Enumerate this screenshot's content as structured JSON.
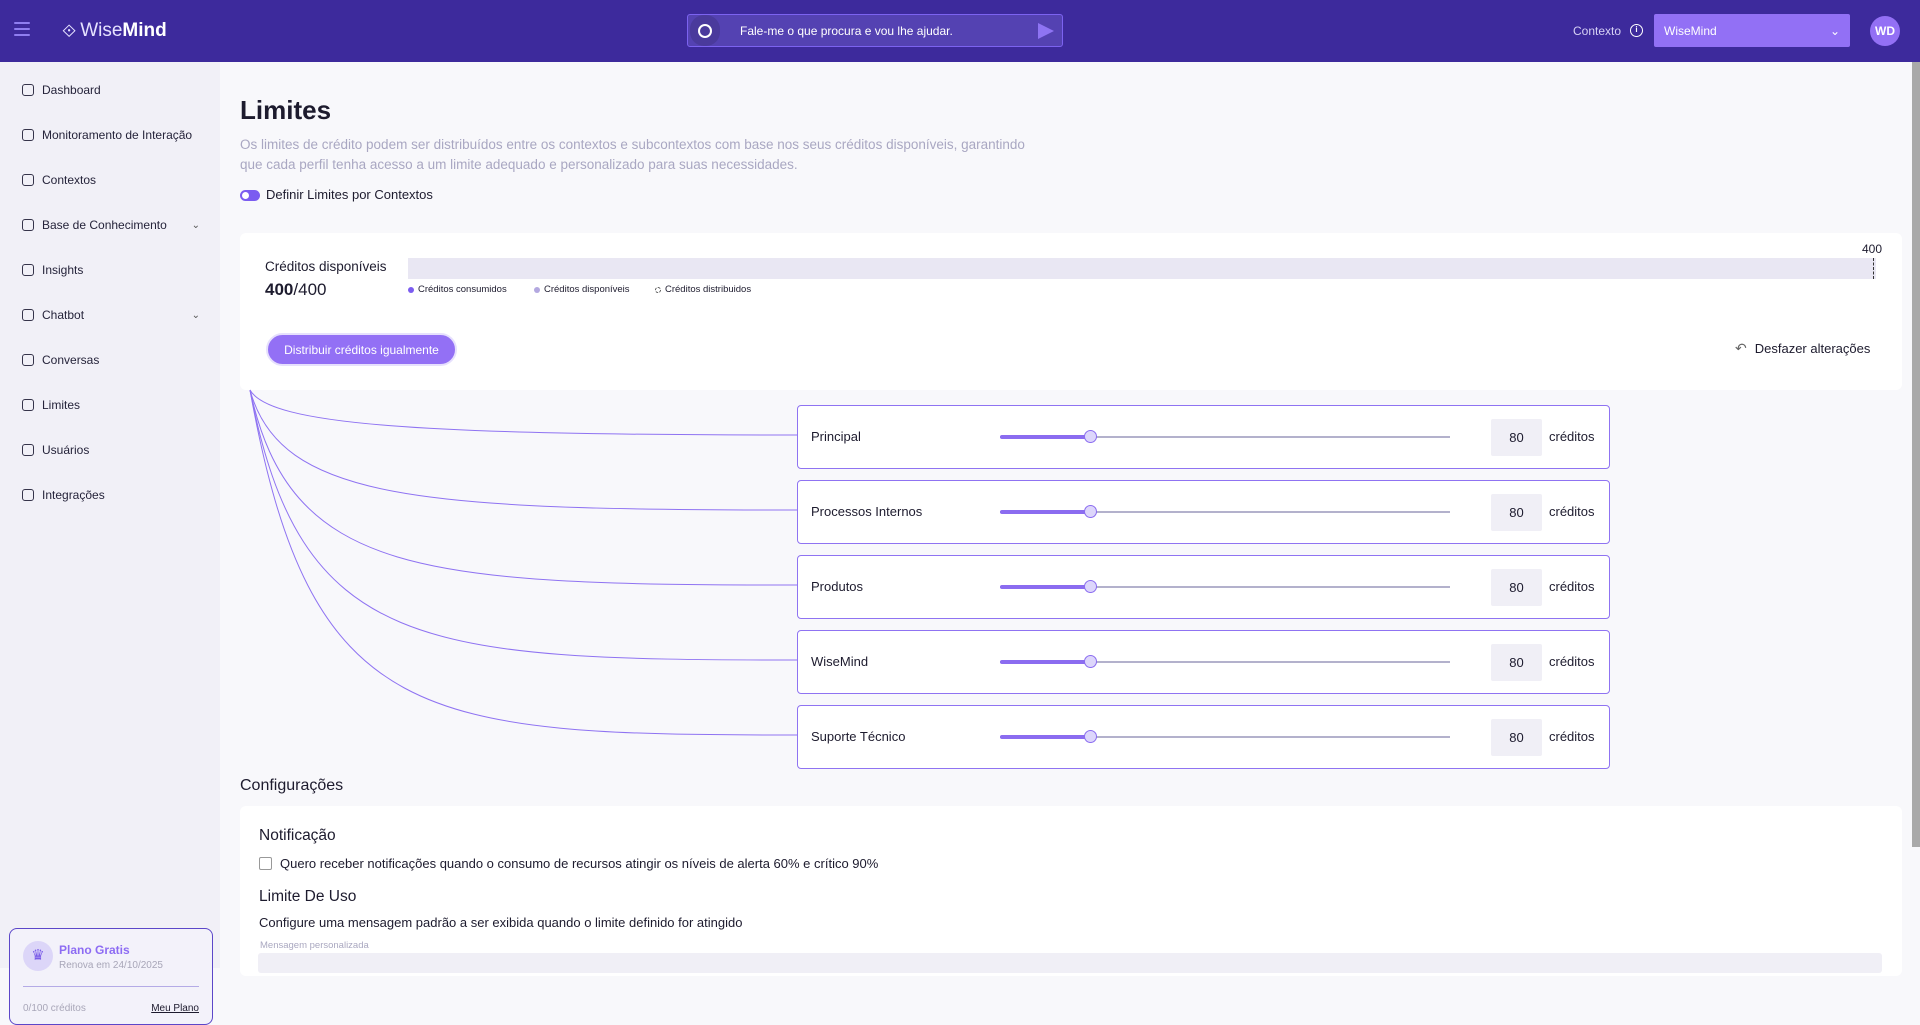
{
  "header": {
    "brand_light": "Wise",
    "brand_bold": "Mind",
    "search_placeholder": "Fale-me o que procura e vou lhe ajudar.",
    "context_label": "Contexto",
    "context_value": "WiseMind",
    "avatar_initials": "WD"
  },
  "sidebar": {
    "items": [
      {
        "label": "Dashboard",
        "icon": "grid-icon"
      },
      {
        "label": "Monitoramento de Interação",
        "icon": "chat-monitor-icon"
      },
      {
        "label": "Contextos",
        "icon": "hierarchy-icon"
      },
      {
        "label": "Base de Conhecimento",
        "icon": "knowledge-icon",
        "expandable": true
      },
      {
        "label": "Insights",
        "icon": "lightbulb-icon"
      },
      {
        "label": "Chatbot",
        "icon": "bot-icon",
        "expandable": true
      },
      {
        "label": "Conversas",
        "icon": "conversations-icon"
      },
      {
        "label": "Limites",
        "icon": "timer-icon"
      },
      {
        "label": "Usuários",
        "icon": "user-icon"
      },
      {
        "label": "Integrações",
        "icon": "integrations-icon"
      }
    ],
    "plan": {
      "title": "Plano Gratis",
      "renew": "Renova em 24/10/2025",
      "credits": "0/100 créditos",
      "link": "Meu Plano"
    }
  },
  "page": {
    "title": "Limites",
    "description": "Os limites de crédito podem ser distribuídos entre os contextos e subcontextos com base nos seus créditos disponíveis, garantindo que cada perfil tenha acesso a um limite adequado e personalizado para suas necessidades.",
    "toggle_label": "Definir Limites por Contextos",
    "toggle_on": true
  },
  "credits": {
    "label": "Créditos disponíveis",
    "available": "400",
    "total": "400",
    "bar_max": "400",
    "legend": [
      "Créditos consumidos",
      "Créditos disponíveis",
      "Créditos distribuidos"
    ],
    "legend_colors": [
      "#7b5cf0",
      "#b3a8e0",
      "#555555"
    ],
    "distribute_button": "Distribuir créditos igualmente",
    "undo_button": "Desfazer alterações"
  },
  "contexts": [
    {
      "name": "Principal",
      "value": "80",
      "unit": "créditos",
      "fraction": 0.2
    },
    {
      "name": "Processos Internos",
      "value": "80",
      "unit": "créditos",
      "fraction": 0.2
    },
    {
      "name": "Produtos",
      "value": "80",
      "unit": "créditos",
      "fraction": 0.2
    },
    {
      "name": "WiseMind",
      "value": "80",
      "unit": "créditos",
      "fraction": 0.2
    },
    {
      "name": "Suporte Técnico",
      "value": "80",
      "unit": "créditos",
      "fraction": 0.2
    }
  ],
  "settings": {
    "title": "Configurações",
    "notification_title": "Notificação",
    "notification_checkbox": "Quero receber notificações quando o consumo de recursos atingir os níveis de alerta 60% e crítico 90%",
    "notification_checked": false,
    "usage_title": "Limite De Uso",
    "usage_desc": "Configure uma mensagem padrão a ser exibida quando o limite definido for atingido",
    "message_label": "Mensagem personalizada",
    "message_value": ""
  }
}
